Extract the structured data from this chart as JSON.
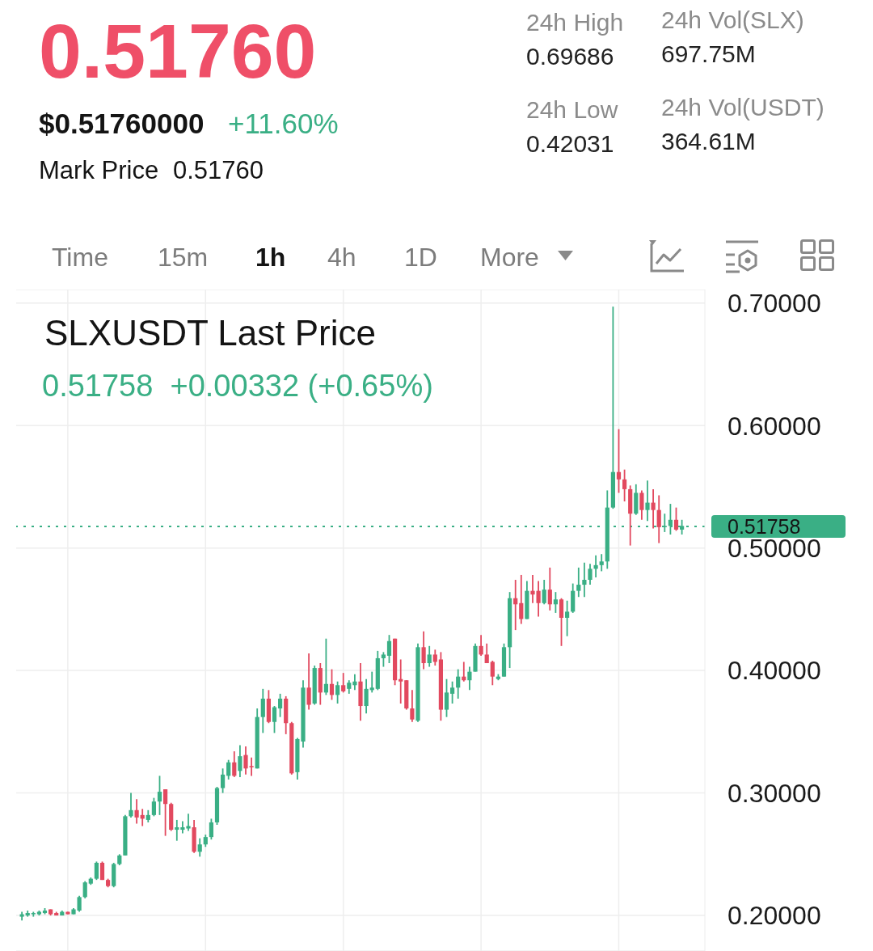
{
  "chart_data": {
    "type": "candlestick",
    "title": "SLXUSDT Last Price",
    "subtitle": "0.51758  +0.00332 (+0.65%)",
    "annotations": [
      "0.51760",
      "$0.51760000",
      "+11.60%",
      "Mark Price",
      "0.51760",
      "24h High",
      "0.69686",
      "24h Low",
      "0.42031",
      "24h Vol(SLX)",
      "697.75M",
      "24h Vol(USDT)",
      "364.61M",
      "Time",
      "15m",
      "1h",
      "4h",
      "1D",
      "More"
    ],
    "categories": [
      null,
      null,
      null,
      null,
      null,
      null,
      null,
      null,
      null,
      null,
      null,
      null,
      null,
      null,
      null,
      null,
      null,
      null,
      null,
      null,
      null,
      null,
      null,
      null,
      null,
      null,
      null,
      null,
      null,
      null,
      null,
      null,
      null,
      null,
      null,
      null,
      null,
      null,
      null,
      null,
      null,
      null,
      null,
      null,
      null,
      null,
      null,
      null,
      null,
      null,
      null,
      null,
      null,
      null,
      null,
      null,
      null,
      null,
      null,
      null,
      null,
      null,
      null,
      null,
      null,
      null,
      null,
      null,
      null,
      null,
      null,
      null,
      null,
      null,
      null,
      null,
      null,
      null,
      null,
      null,
      null,
      null,
      null,
      null,
      null,
      null,
      null,
      null,
      null,
      null,
      null,
      null,
      null,
      null,
      null,
      null,
      null,
      null,
      null,
      null,
      null,
      null,
      null,
      null,
      null,
      null,
      null,
      null,
      null,
      null,
      null,
      null,
      null,
      null,
      null,
      null
    ],
    "ohlc": [
      [
        0.199,
        0.203,
        0.196,
        0.201
      ],
      [
        0.2,
        0.204,
        0.199,
        0.202
      ],
      [
        0.201,
        0.203,
        0.199,
        0.202
      ],
      [
        0.201,
        0.204,
        0.2,
        0.203
      ],
      [
        0.202,
        0.206,
        0.201,
        0.204
      ],
      [
        0.205,
        0.205,
        0.2,
        0.201
      ],
      [
        0.202,
        0.203,
        0.2,
        0.2
      ],
      [
        0.2,
        0.204,
        0.2,
        0.203
      ],
      [
        0.203,
        0.203,
        0.201,
        0.201
      ],
      [
        0.201,
        0.206,
        0.201,
        0.205
      ],
      [
        0.204,
        0.216,
        0.203,
        0.215
      ],
      [
        0.215,
        0.228,
        0.214,
        0.227
      ],
      [
        0.226,
        0.231,
        0.225,
        0.23
      ],
      [
        0.23,
        0.244,
        0.229,
        0.243
      ],
      [
        0.243,
        0.244,
        0.229,
        0.229
      ],
      [
        0.229,
        0.23,
        0.223,
        0.224
      ],
      [
        0.224,
        0.243,
        0.223,
        0.242
      ],
      [
        0.242,
        0.25,
        0.241,
        0.249
      ],
      [
        0.249,
        0.282,
        0.249,
        0.281
      ],
      [
        0.281,
        0.3,
        0.28,
        0.286
      ],
      [
        0.286,
        0.295,
        0.275,
        0.28
      ],
      [
        0.282,
        0.287,
        0.273,
        0.279
      ],
      [
        0.278,
        0.286,
        0.276,
        0.282
      ],
      [
        0.282,
        0.296,
        0.281,
        0.293
      ],
      [
        0.293,
        0.314,
        0.282,
        0.301
      ],
      [
        0.303,
        0.303,
        0.265,
        0.291
      ],
      [
        0.291,
        0.292,
        0.269,
        0.27
      ],
      [
        0.27,
        0.278,
        0.261,
        0.272
      ],
      [
        0.27,
        0.277,
        0.267,
        0.272
      ],
      [
        0.271,
        0.283,
        0.269,
        0.273
      ],
      [
        0.272,
        0.278,
        0.251,
        0.252
      ],
      [
        0.252,
        0.263,
        0.248,
        0.258
      ],
      [
        0.258,
        0.266,
        0.256,
        0.264
      ],
      [
        0.264,
        0.279,
        0.262,
        0.276
      ],
      [
        0.276,
        0.305,
        0.274,
        0.304
      ],
      [
        0.304,
        0.32,
        0.3,
        0.315
      ],
      [
        0.314,
        0.327,
        0.311,
        0.325
      ],
      [
        0.325,
        0.334,
        0.313,
        0.314
      ],
      [
        0.318,
        0.339,
        0.313,
        0.33
      ],
      [
        0.331,
        0.338,
        0.315,
        0.32
      ],
      [
        0.322,
        0.329,
        0.314,
        0.321
      ],
      [
        0.32,
        0.369,
        0.32,
        0.362
      ],
      [
        0.362,
        0.385,
        0.349,
        0.377
      ],
      [
        0.377,
        0.384,
        0.357,
        0.358
      ],
      [
        0.358,
        0.371,
        0.349,
        0.37
      ],
      [
        0.369,
        0.381,
        0.362,
        0.377
      ],
      [
        0.377,
        0.379,
        0.348,
        0.357
      ],
      [
        0.357,
        0.358,
        0.315,
        0.316
      ],
      [
        0.317,
        0.345,
        0.311,
        0.344
      ],
      [
        0.342,
        0.392,
        0.337,
        0.386
      ],
      [
        0.386,
        0.414,
        0.368,
        0.372
      ],
      [
        0.373,
        0.404,
        0.372,
        0.402
      ],
      [
        0.402,
        0.406,
        0.372,
        0.382
      ],
      [
        0.382,
        0.426,
        0.38,
        0.389
      ],
      [
        0.389,
        0.401,
        0.376,
        0.38
      ],
      [
        0.38,
        0.391,
        0.373,
        0.388
      ],
      [
        0.388,
        0.398,
        0.382,
        0.383
      ],
      [
        0.385,
        0.392,
        0.381,
        0.39
      ],
      [
        0.388,
        0.397,
        0.384,
        0.391
      ],
      [
        0.391,
        0.406,
        0.359,
        0.371
      ],
      [
        0.371,
        0.393,
        0.365,
        0.385
      ],
      [
        0.384,
        0.399,
        0.382,
        0.386
      ],
      [
        0.385,
        0.416,
        0.384,
        0.41
      ],
      [
        0.41,
        0.415,
        0.403,
        0.413
      ],
      [
        0.412,
        0.429,
        0.406,
        0.424
      ],
      [
        0.426,
        0.426,
        0.388,
        0.392
      ],
      [
        0.393,
        0.409,
        0.373,
        0.391
      ],
      [
        0.392,
        0.392,
        0.368,
        0.369
      ],
      [
        0.369,
        0.384,
        0.358,
        0.36
      ],
      [
        0.359,
        0.422,
        0.358,
        0.419
      ],
      [
        0.419,
        0.432,
        0.401,
        0.406
      ],
      [
        0.406,
        0.42,
        0.403,
        0.413
      ],
      [
        0.413,
        0.417,
        0.404,
        0.407
      ],
      [
        0.409,
        0.415,
        0.359,
        0.368
      ],
      [
        0.368,
        0.393,
        0.362,
        0.382
      ],
      [
        0.381,
        0.391,
        0.373,
        0.386
      ],
      [
        0.386,
        0.401,
        0.377,
        0.395
      ],
      [
        0.395,
        0.407,
        0.391,
        0.392
      ],
      [
        0.392,
        0.403,
        0.384,
        0.399
      ],
      [
        0.399,
        0.422,
        0.399,
        0.42
      ],
      [
        0.42,
        0.429,
        0.412,
        0.413
      ],
      [
        0.413,
        0.422,
        0.406,
        0.406
      ],
      [
        0.407,
        0.408,
        0.388,
        0.395
      ],
      [
        0.393,
        0.397,
        0.392,
        0.395
      ],
      [
        0.395,
        0.422,
        0.395,
        0.419
      ],
      [
        0.419,
        0.464,
        0.402,
        0.459
      ],
      [
        0.459,
        0.474,
        0.433,
        0.454
      ],
      [
        0.455,
        0.478,
        0.438,
        0.442
      ],
      [
        0.442,
        0.473,
        0.442,
        0.465
      ],
      [
        0.465,
        0.478,
        0.455,
        0.462
      ],
      [
        0.465,
        0.473,
        0.444,
        0.455
      ],
      [
        0.455,
        0.474,
        0.454,
        0.466
      ],
      [
        0.466,
        0.484,
        0.449,
        0.454
      ],
      [
        0.454,
        0.464,
        0.447,
        0.458
      ],
      [
        0.458,
        0.459,
        0.42,
        0.443
      ],
      [
        0.443,
        0.457,
        0.428,
        0.448
      ],
      [
        0.448,
        0.471,
        0.447,
        0.465
      ],
      [
        0.465,
        0.484,
        0.46,
        0.47
      ],
      [
        0.47,
        0.488,
        0.46,
        0.474
      ],
      [
        0.474,
        0.487,
        0.47,
        0.483
      ],
      [
        0.483,
        0.494,
        0.476,
        0.486
      ],
      [
        0.486,
        0.495,
        0.481,
        0.489
      ],
      [
        0.489,
        0.547,
        0.483,
        0.533
      ],
      [
        0.533,
        0.697,
        0.532,
        0.562
      ],
      [
        0.562,
        0.597,
        0.545,
        0.556
      ],
      [
        0.556,
        0.564,
        0.538,
        0.548
      ],
      [
        0.548,
        0.551,
        0.502,
        0.528
      ],
      [
        0.528,
        0.552,
        0.527,
        0.545
      ],
      [
        0.545,
        0.547,
        0.523,
        0.531
      ],
      [
        0.531,
        0.555,
        0.522,
        0.537
      ],
      [
        0.537,
        0.548,
        0.516,
        0.531
      ],
      [
        0.531,
        0.543,
        0.504,
        0.517
      ],
      [
        0.517,
        0.528,
        0.513,
        0.518
      ],
      [
        0.518,
        0.536,
        0.511,
        0.523
      ],
      [
        0.523,
        0.533,
        0.514,
        0.515
      ],
      [
        0.515,
        0.523,
        0.511,
        0.518
      ]
    ],
    "colors": [
      "#3aaf85",
      "#3aaf85",
      "#3aaf85",
      "#3aaf85",
      "#3aaf85",
      "#e2495f",
      "#e2495f",
      "#3aaf85",
      "#e2495f",
      "#3aaf85",
      "#3aaf85",
      "#3aaf85",
      "#3aaf85",
      "#3aaf85",
      "#e2495f",
      "#e2495f",
      "#3aaf85",
      "#3aaf85",
      "#3aaf85",
      "#3aaf85",
      "#e2495f",
      "#e2495f",
      "#3aaf85",
      "#3aaf85",
      "#3aaf85",
      "#e2495f",
      "#e2495f",
      "#3aaf85",
      "#3aaf85",
      "#3aaf85",
      "#e2495f",
      "#3aaf85",
      "#3aaf85",
      "#3aaf85",
      "#3aaf85",
      "#3aaf85",
      "#3aaf85",
      "#e2495f",
      "#3aaf85",
      "#e2495f",
      "#e2495f",
      "#3aaf85",
      "#3aaf85",
      "#e2495f",
      "#3aaf85",
      "#3aaf85",
      "#e2495f",
      "#e2495f",
      "#3aaf85",
      "#3aaf85",
      "#e2495f",
      "#3aaf85",
      "#e2495f",
      "#3aaf85",
      "#e2495f",
      "#3aaf85",
      "#e2495f",
      "#3aaf85",
      "#3aaf85",
      "#e2495f",
      "#3aaf85",
      "#3aaf85",
      "#3aaf85",
      "#3aaf85",
      "#3aaf85",
      "#e2495f",
      "#e2495f",
      "#e2495f",
      "#e2495f",
      "#3aaf85",
      "#e2495f",
      "#3aaf85",
      "#e2495f",
      "#e2495f",
      "#3aaf85",
      "#3aaf85",
      "#3aaf85",
      "#e2495f",
      "#3aaf85",
      "#3aaf85",
      "#e2495f",
      "#e2495f",
      "#e2495f",
      "#3aaf85",
      "#3aaf85",
      "#3aaf85",
      "#e2495f",
      "#e2495f",
      "#3aaf85",
      "#e2495f",
      "#e2495f",
      "#3aaf85",
      "#e2495f",
      "#3aaf85",
      "#e2495f",
      "#3aaf85",
      "#3aaf85",
      "#3aaf85",
      "#3aaf85",
      "#3aaf85",
      "#3aaf85",
      "#3aaf85",
      "#3aaf85",
      "#3aaf85",
      "#e2495f",
      "#e2495f",
      "#e2495f",
      "#3aaf85",
      "#e2495f",
      "#3aaf85",
      "#e2495f",
      "#e2495f",
      "#3aaf85",
      "#3aaf85",
      "#e2495f",
      "#3aaf85"
    ],
    "ylim": [
      0.171,
      0.711
    ],
    "yticks": [
      {
        "value": 0.2,
        "label": "0.20000"
      },
      {
        "value": 0.3,
        "label": "0.30000"
      },
      {
        "value": 0.4,
        "label": "0.40000"
      },
      {
        "value": 0.5,
        "label": "0.50000"
      },
      {
        "value": 0.6,
        "label": "0.60000"
      },
      {
        "value": 0.7,
        "label": "0.70000"
      }
    ],
    "grid": true,
    "tick_labels": "y",
    "ref_lines": [
      {
        "axis": "y",
        "value": 0.51758,
        "label": "0.51758",
        "color": "#3aaf85",
        "line_style": "dotted"
      }
    ]
  }
}
